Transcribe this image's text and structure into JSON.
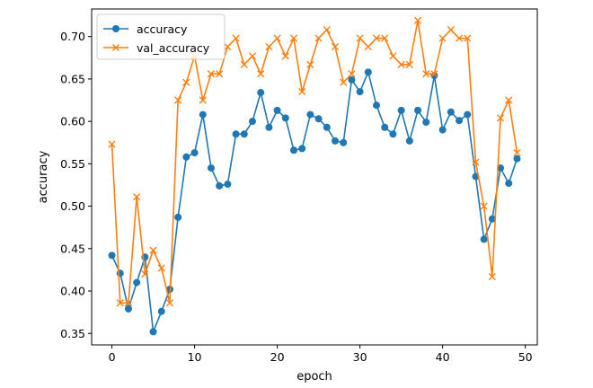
{
  "chart_data": {
    "type": "line",
    "title": "",
    "xlabel": "epoch",
    "ylabel": "accuracy",
    "xlim": [
      -2.45,
      51.45
    ],
    "ylim": [
      0.3365,
      0.7325
    ],
    "xticks": [
      0,
      10,
      20,
      30,
      40,
      50
    ],
    "yticks": [
      0.35,
      0.4,
      0.45,
      0.5,
      0.55,
      0.6,
      0.65,
      0.7
    ],
    "ytick_labels": [
      "0.35",
      "0.40",
      "0.45",
      "0.50",
      "0.55",
      "0.60",
      "0.65",
      "0.70"
    ],
    "grid": false,
    "legend_position": "upper left",
    "x": [
      0,
      1,
      2,
      3,
      4,
      5,
      6,
      7,
      8,
      9,
      10,
      11,
      12,
      13,
      14,
      15,
      16,
      17,
      18,
      19,
      20,
      21,
      22,
      23,
      24,
      25,
      26,
      27,
      28,
      29,
      30,
      31,
      32,
      33,
      34,
      35,
      36,
      37,
      38,
      39,
      40,
      41,
      42,
      43,
      44,
      45,
      46,
      47,
      48,
      49
    ],
    "series": [
      {
        "name": "accuracy",
        "color": "#1f77b4",
        "marker": "circle",
        "values": [
          0.442,
          0.421,
          0.379,
          0.41,
          0.44,
          0.352,
          0.376,
          0.402,
          0.487,
          0.558,
          0.563,
          0.608,
          0.545,
          0.524,
          0.526,
          0.585,
          0.585,
          0.6,
          0.634,
          0.593,
          0.613,
          0.604,
          0.566,
          0.568,
          0.608,
          0.603,
          0.593,
          0.577,
          0.575,
          0.649,
          0.635,
          0.658,
          0.619,
          0.593,
          0.585,
          0.613,
          0.577,
          0.613,
          0.599,
          0.654,
          0.59,
          0.611,
          0.601,
          0.608,
          0.535,
          0.461,
          0.485,
          0.545,
          0.527,
          0.556
        ]
      },
      {
        "name": "val_accuracy",
        "color": "#ff7f0e",
        "marker": "x",
        "values": [
          0.573,
          0.386,
          0.386,
          0.511,
          0.42,
          0.448,
          0.427,
          0.386,
          0.625,
          0.646,
          0.677,
          0.625,
          0.656,
          0.656,
          0.688,
          0.698,
          0.667,
          0.677,
          0.656,
          0.688,
          0.698,
          0.677,
          0.698,
          0.635,
          0.667,
          0.698,
          0.708,
          0.688,
          0.646,
          0.656,
          0.698,
          0.688,
          0.698,
          0.698,
          0.677,
          0.667,
          0.667,
          0.719,
          0.656,
          0.656,
          0.698,
          0.708,
          0.698,
          0.698,
          0.552,
          0.5,
          0.417,
          0.604,
          0.625,
          0.563
        ]
      }
    ]
  }
}
